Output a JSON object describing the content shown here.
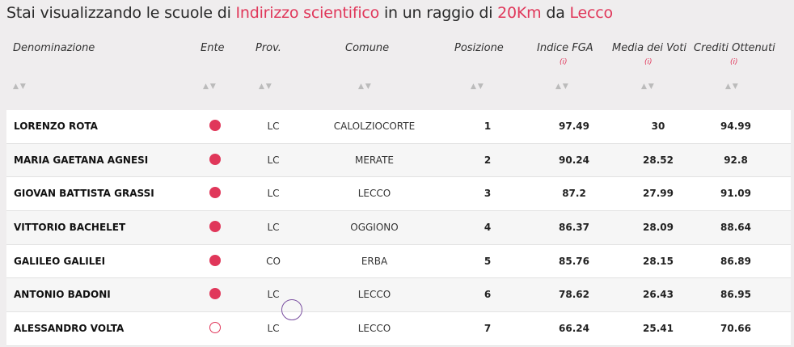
{
  "title": {
    "prefix": "Stai visualizzando le scuole di ",
    "indirizzo": "Indirizzo scientifico",
    "middle": " in un raggio di ",
    "raggio": "20Km",
    "da": " da ",
    "citta": "Lecco"
  },
  "headers": {
    "denominazione": "Denominazione",
    "ente": "Ente",
    "prov": "Prov.",
    "comune": "Comune",
    "posizione": "Posizione",
    "fga": "Indice FGA",
    "media": "Media dei Voti",
    "crediti": "Crediti Ottenuti",
    "info": "(i)",
    "sort": "▲▼"
  },
  "colors": {
    "accent": "#e0375a"
  },
  "rows": [
    {
      "nome": "LORENZO ROTA",
      "ente": "filled",
      "prov": "LC",
      "comune": "CALOLZIOCORTE",
      "pos": "1",
      "fga": "97.49",
      "media": "30",
      "crediti": "94.99"
    },
    {
      "nome": "MARIA GAETANA AGNESI",
      "ente": "filled",
      "prov": "LC",
      "comune": "MERATE",
      "pos": "2",
      "fga": "90.24",
      "media": "28.52",
      "crediti": "92.8"
    },
    {
      "nome": "GIOVAN BATTISTA GRASSI",
      "ente": "filled",
      "prov": "LC",
      "comune": "LECCO",
      "pos": "3",
      "fga": "87.2",
      "media": "27.99",
      "crediti": "91.09"
    },
    {
      "nome": "VITTORIO BACHELET",
      "ente": "filled",
      "prov": "LC",
      "comune": "OGGIONO",
      "pos": "4",
      "fga": "86.37",
      "media": "28.09",
      "crediti": "88.64"
    },
    {
      "nome": "GALILEO GALILEI",
      "ente": "filled",
      "prov": "CO",
      "comune": "ERBA",
      "pos": "5",
      "fga": "85.76",
      "media": "28.15",
      "crediti": "86.89"
    },
    {
      "nome": "ANTONIO BADONI",
      "ente": "filled",
      "prov": "LC",
      "comune": "LECCO",
      "pos": "6",
      "fga": "78.62",
      "media": "26.43",
      "crediti": "86.95"
    },
    {
      "nome": "ALESSANDRO VOLTA",
      "ente": "empty",
      "prov": "LC",
      "comune": "LECCO",
      "pos": "7",
      "fga": "66.24",
      "media": "25.41",
      "crediti": "70.66"
    }
  ]
}
